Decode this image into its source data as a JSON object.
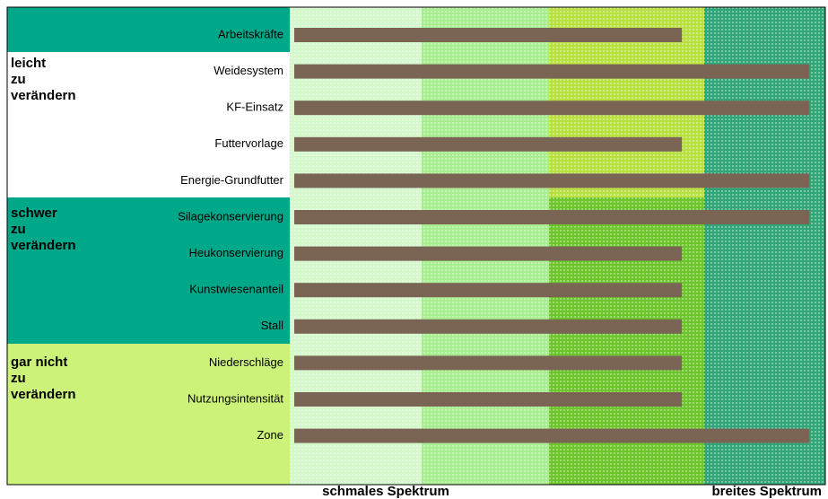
{
  "chart_data": {
    "type": "bar",
    "categories": [
      "Arbeitskräfte",
      "Weidesystem",
      "KF-Einsatz",
      "Futtervorlage",
      "Energie-Grundfutter",
      "Silagekonservierung",
      "Heukonservierung",
      "Kunstwiesenanteil",
      "Stall",
      "Niederschläge",
      "Nutzungsintensität",
      "Zone"
    ],
    "values": [
      73,
      97,
      97,
      73,
      97,
      97,
      73,
      73,
      73,
      73,
      73,
      97
    ],
    "color": "#7a6555",
    "xlim": [
      0,
      100
    ],
    "groups": [
      "leicht\nzu\nverändern",
      "schwer\nzu\nverändern",
      "gar  nicht\nzu\nverändern"
    ],
    "x_labels": [
      "schmales Spektrum",
      "breites Spektrum"
    ]
  }
}
